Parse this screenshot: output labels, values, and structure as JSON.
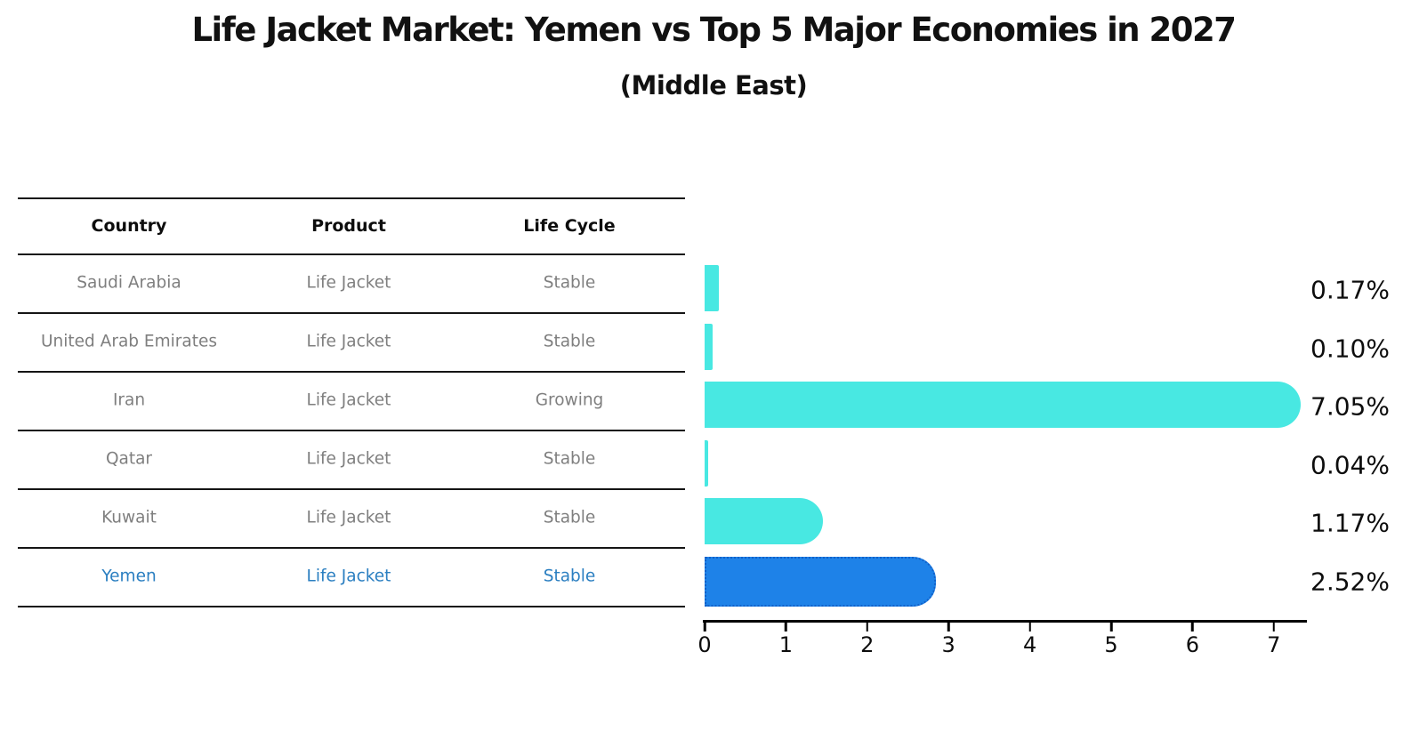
{
  "header": {
    "title": "Life Jacket Market: Yemen vs Top 5 Major Economies in 2027",
    "subtitle": "(Middle East)"
  },
  "table": {
    "columns": [
      "Country",
      "Product",
      "Life Cycle"
    ]
  },
  "chart_data": {
    "type": "bar",
    "orientation": "horizontal",
    "title": "Life Jacket Market: Yemen vs Top 5 Major Economies in 2027",
    "subtitle": "(Middle East)",
    "categories": [
      "Saudi Arabia",
      "United Arab Emirates",
      "Iran",
      "Qatar",
      "Kuwait",
      "Yemen"
    ],
    "values": [
      0.17,
      0.1,
      7.05,
      0.04,
      1.17,
      2.52
    ],
    "value_labels": [
      "0.17%",
      "0.10%",
      "7.05%",
      "0.04%",
      "1.17%",
      "2.52%"
    ],
    "rows": [
      {
        "country": "Saudi Arabia",
        "product": "Life Jacket",
        "life_cycle": "Stable",
        "value": 0.17,
        "value_label": "0.17%",
        "highlight": false
      },
      {
        "country": "United Arab Emirates",
        "product": "Life Jacket",
        "life_cycle": "Stable",
        "value": 0.1,
        "value_label": "0.10%",
        "highlight": false
      },
      {
        "country": "Iran",
        "product": "Life Jacket",
        "life_cycle": "Growing",
        "value": 7.05,
        "value_label": "7.05%",
        "highlight": false
      },
      {
        "country": "Qatar",
        "product": "Life Jacket",
        "life_cycle": "Stable",
        "value": 0.04,
        "value_label": "0.04%",
        "highlight": false
      },
      {
        "country": "Kuwait",
        "product": "Life Jacket",
        "life_cycle": "Stable",
        "value": 1.17,
        "value_label": "1.17%",
        "highlight": false
      },
      {
        "country": "Yemen",
        "product": "Life Jacket",
        "life_cycle": "Stable",
        "value": 2.52,
        "value_label": "2.52%",
        "highlight": true
      }
    ],
    "xlim": [
      0,
      7.42
    ],
    "x_ticks": [
      "0",
      "1",
      "2",
      "3",
      "4",
      "5",
      "6",
      "7"
    ],
    "grid": false,
    "legend": "none",
    "colors": {
      "bar": "#48e8e2",
      "highlight_bar": "#1e82e8",
      "highlight_border": "#1261c9",
      "highlight_text": "#2b7fc1",
      "row_text": "#7f7f7f",
      "header_text": "#0d0d0d",
      "axis": "#000000"
    }
  }
}
